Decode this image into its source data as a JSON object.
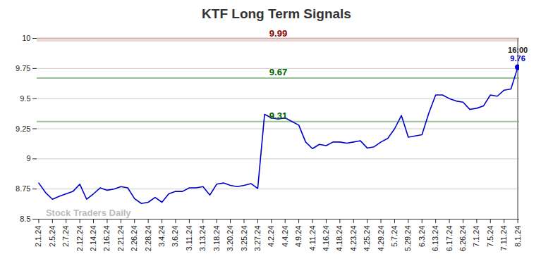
{
  "chart_data": {
    "type": "line",
    "title": "KTF Long Term Signals",
    "categories": [
      "2.1.24",
      null,
      "2.5.24",
      null,
      "2.7.24",
      null,
      "2.12.24",
      null,
      "2.14.24",
      null,
      "2.16.24",
      null,
      "2.21.24",
      null,
      "2.26.24",
      null,
      "2.28.24",
      null,
      "3.4.24",
      null,
      "3.6.24",
      null,
      "3.11.24",
      null,
      "3.13.24",
      null,
      "3.18.24",
      null,
      "3.20.24",
      null,
      "3.25.24",
      null,
      "3.27.24",
      null,
      "4.2.24",
      null,
      "4.4.24",
      null,
      "4.9.24",
      null,
      "4.11.24",
      null,
      "4.16.24",
      null,
      "4.18.24",
      null,
      "4.23.24",
      null,
      "4.25.24",
      null,
      "4.29.24",
      null,
      "5.7.24",
      null,
      "5.29.24",
      null,
      "6.3.24",
      null,
      "6.13.24",
      null,
      "6.17.24",
      null,
      "6.26.24",
      null,
      "7.1.24",
      null,
      "7.5.24",
      null,
      "7.11.24",
      null,
      "8.1.24"
    ],
    "values": [
      8.8,
      8.72,
      8.665,
      8.69,
      8.71,
      8.73,
      8.79,
      8.665,
      8.71,
      8.76,
      8.74,
      8.75,
      8.77,
      8.76,
      8.67,
      8.63,
      8.64,
      8.68,
      8.64,
      8.71,
      8.73,
      8.73,
      8.76,
      8.76,
      8.77,
      8.7,
      8.79,
      8.8,
      8.78,
      8.77,
      8.78,
      8.795,
      8.755,
      9.37,
      9.34,
      9.33,
      9.34,
      9.31,
      9.28,
      9.14,
      9.085,
      9.12,
      9.11,
      9.14,
      9.14,
      9.13,
      9.14,
      9.15,
      9.09,
      9.1,
      9.14,
      9.17,
      9.25,
      9.36,
      9.18,
      9.19,
      9.2,
      9.38,
      9.53,
      9.53,
      9.5,
      9.48,
      9.47,
      9.41,
      9.42,
      9.44,
      9.53,
      9.52,
      9.57,
      9.58,
      9.76
    ],
    "color": "#0000cc",
    "ylim": [
      8.5,
      10
    ],
    "yticks": [
      8.5,
      8.75,
      9,
      9.25,
      9.5,
      9.75,
      10
    ],
    "grid": true,
    "reference_lines": [
      {
        "value": 9.99,
        "label": "9.99",
        "color": "#8b0000"
      },
      {
        "value": 9.67,
        "label": "9.67",
        "color": "#006400"
      },
      {
        "value": 9.31,
        "label": "9.31",
        "color": "#006400"
      }
    ],
    "end_time": "16:00",
    "end_value_label": "9.76",
    "watermark": "Stock Traders Daily"
  }
}
